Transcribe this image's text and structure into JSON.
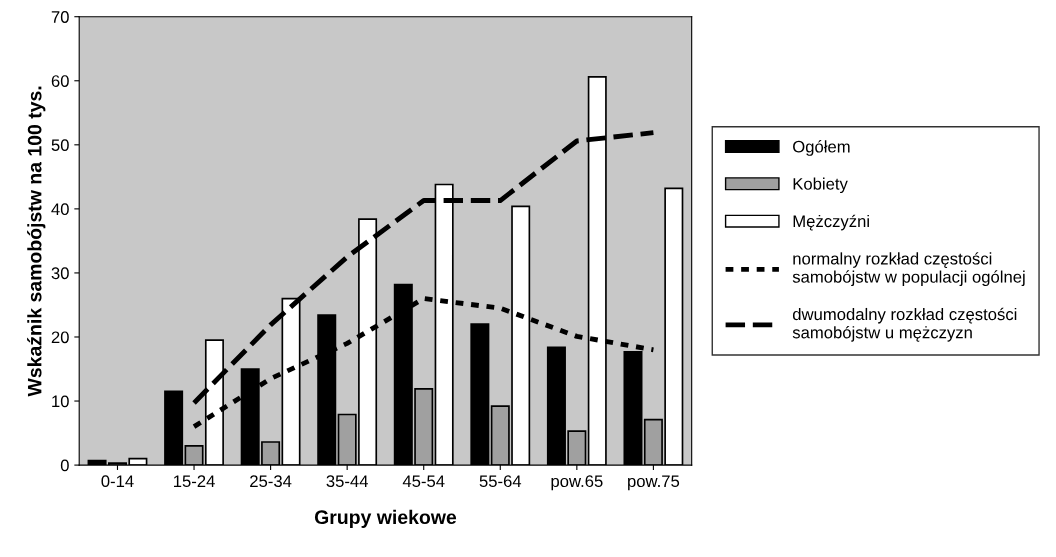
{
  "chart_data": {
    "type": "bar",
    "xlabel": "Grupy wiekowe",
    "ylabel": "Wskaźnik samobójstw na 100 tys.",
    "categories": [
      "0-14",
      "15-24",
      "25-34",
      "35-44",
      "45-54",
      "55-64",
      "pow.65",
      "pow.75"
    ],
    "series": [
      {
        "name": "Ogółem",
        "color": "#000000",
        "values": [
          0.7,
          11.5,
          15.0,
          23.4,
          28.2,
          22.0,
          18.4,
          17.7
        ]
      },
      {
        "name": "Kobiety",
        "color": "#a0a0a0",
        "values": [
          0.3,
          3.0,
          3.6,
          7.9,
          11.9,
          9.2,
          5.3,
          7.1
        ]
      },
      {
        "name": "Mężczyźni",
        "color": "#ffffff",
        "values": [
          1.0,
          19.5,
          26.0,
          38.4,
          43.8,
          40.4,
          60.6,
          43.2
        ]
      },
      {
        "name": "normalny rozkład częstości\nsamobójstw w populacji ogólnej",
        "type": "line",
        "line_style": "dotted",
        "color": "#000000",
        "values": [
          null,
          6.0,
          13.5,
          19.0,
          26.0,
          24.5,
          20.1,
          18.0
        ]
      },
      {
        "name": "dwumodalny rozkład częstości\nsamobójstw u mężczyzn",
        "type": "line",
        "line_style": "dashed",
        "color": "#000000",
        "values": [
          null,
          9.7,
          21.9,
          32.5,
          41.3,
          41.3,
          50.6,
          51.9
        ]
      }
    ],
    "ylim": [
      0,
      70
    ],
    "yticks": [
      0,
      10,
      20,
      30,
      40,
      50,
      60,
      70
    ],
    "grid": false,
    "legend": "right",
    "marker": "none"
  }
}
